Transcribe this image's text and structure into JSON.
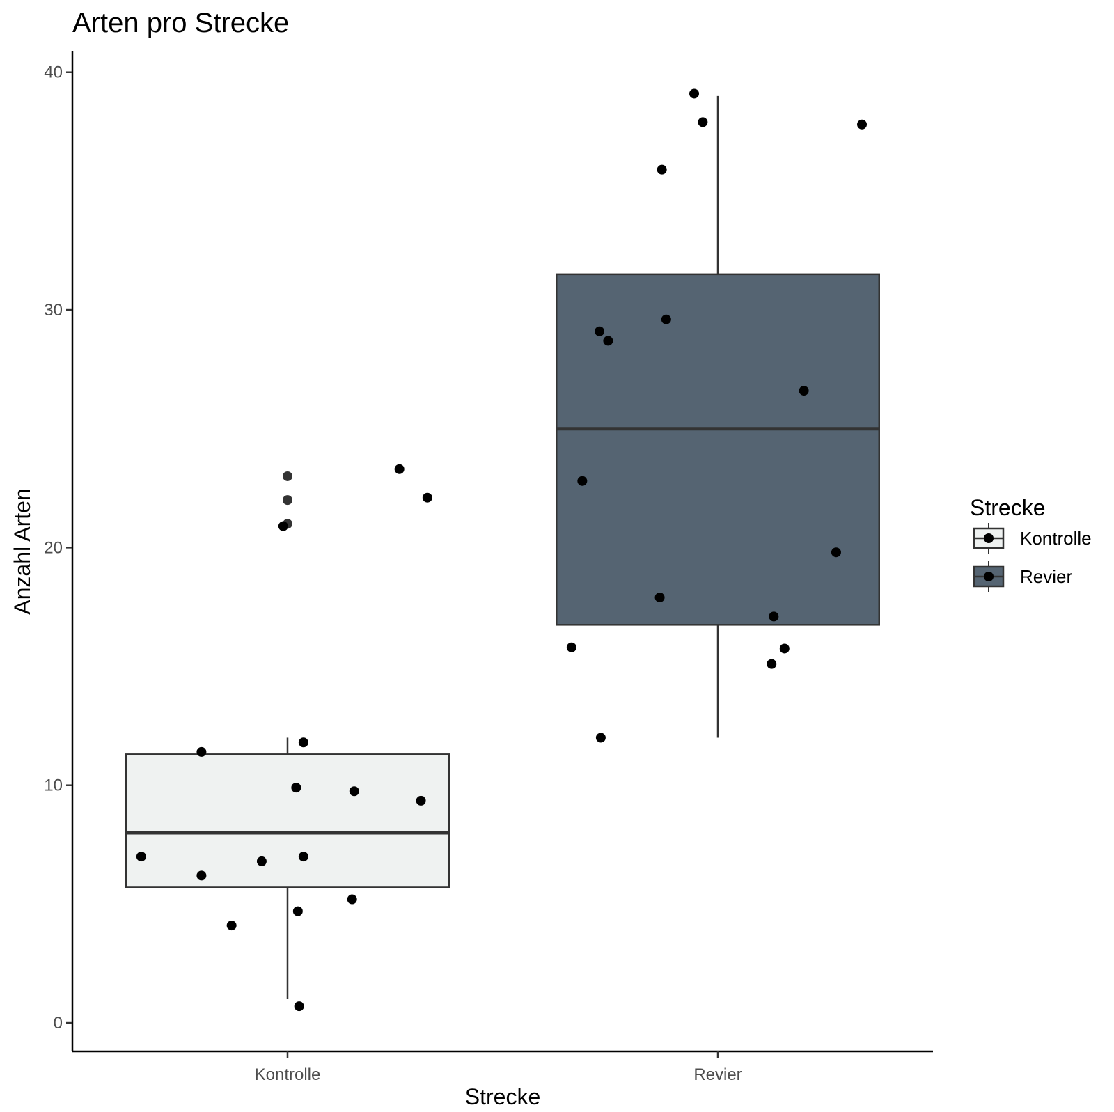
{
  "chart_data": {
    "type": "boxplot",
    "title": "Arten pro Strecke",
    "xlabel": "Strecke",
    "ylabel": "Anzahl Arten",
    "categories": [
      "Kontrolle",
      "Revier"
    ],
    "ylim": [
      -1.2,
      40.9
    ],
    "yticks": [
      0,
      10,
      20,
      30,
      40
    ],
    "grid": false,
    "legend": {
      "title": "Strecke",
      "position": "right",
      "entries": [
        "Kontrolle",
        "Revier"
      ]
    },
    "colors": {
      "Kontrolle": "#eff2f1",
      "Revier": "#556472",
      "box_line": "#333333",
      "point": "#000000"
    },
    "series": [
      {
        "name": "Kontrolle",
        "box": {
          "whisker_low": 1,
          "q1": 5.7,
          "median": 8,
          "q3": 11.3,
          "whisker_high": 12
        },
        "outliers": [
          21,
          22,
          23
        ],
        "points": [
          {
            "x": -0.34,
            "y": 7
          },
          {
            "x": -0.2,
            "y": 11.4
          },
          {
            "x": -0.2,
            "y": 6.2
          },
          {
            "x": -0.13,
            "y": 4.1
          },
          {
            "x": -0.06,
            "y": 6.8
          },
          {
            "x": -0.01,
            "y": 20.9
          },
          {
            "x": 0.02,
            "y": 9.9
          },
          {
            "x": 0.024,
            "y": 4.7
          },
          {
            "x": 0.027,
            "y": 0.7
          },
          {
            "x": 0.037,
            "y": 11.8
          },
          {
            "x": 0.037,
            "y": 7
          },
          {
            "x": 0.15,
            "y": 5.2
          },
          {
            "x": 0.155,
            "y": 9.75
          },
          {
            "x": 0.26,
            "y": 23.3
          },
          {
            "x": 0.31,
            "y": 9.35
          },
          {
            "x": 0.325,
            "y": 22.1
          }
        ]
      },
      {
        "name": "Revier",
        "box": {
          "whisker_low": 12,
          "q1": 16.75,
          "median": 25,
          "q3": 31.5,
          "whisker_high": 39
        },
        "outliers": [],
        "points": [
          {
            "x": -0.34,
            "y": 15.8
          },
          {
            "x": -0.315,
            "y": 22.8
          },
          {
            "x": -0.275,
            "y": 29.1
          },
          {
            "x": -0.272,
            "y": 12
          },
          {
            "x": -0.255,
            "y": 28.7
          },
          {
            "x": -0.135,
            "y": 17.9
          },
          {
            "x": -0.13,
            "y": 35.9
          },
          {
            "x": -0.12,
            "y": 29.6
          },
          {
            "x": -0.055,
            "y": 39.1
          },
          {
            "x": -0.035,
            "y": 37.9
          },
          {
            "x": 0.125,
            "y": 15.1
          },
          {
            "x": 0.13,
            "y": 17.1
          },
          {
            "x": 0.155,
            "y": 15.75
          },
          {
            "x": 0.2,
            "y": 26.6
          },
          {
            "x": 0.275,
            "y": 19.8
          },
          {
            "x": 0.335,
            "y": 37.8
          }
        ]
      }
    ]
  }
}
